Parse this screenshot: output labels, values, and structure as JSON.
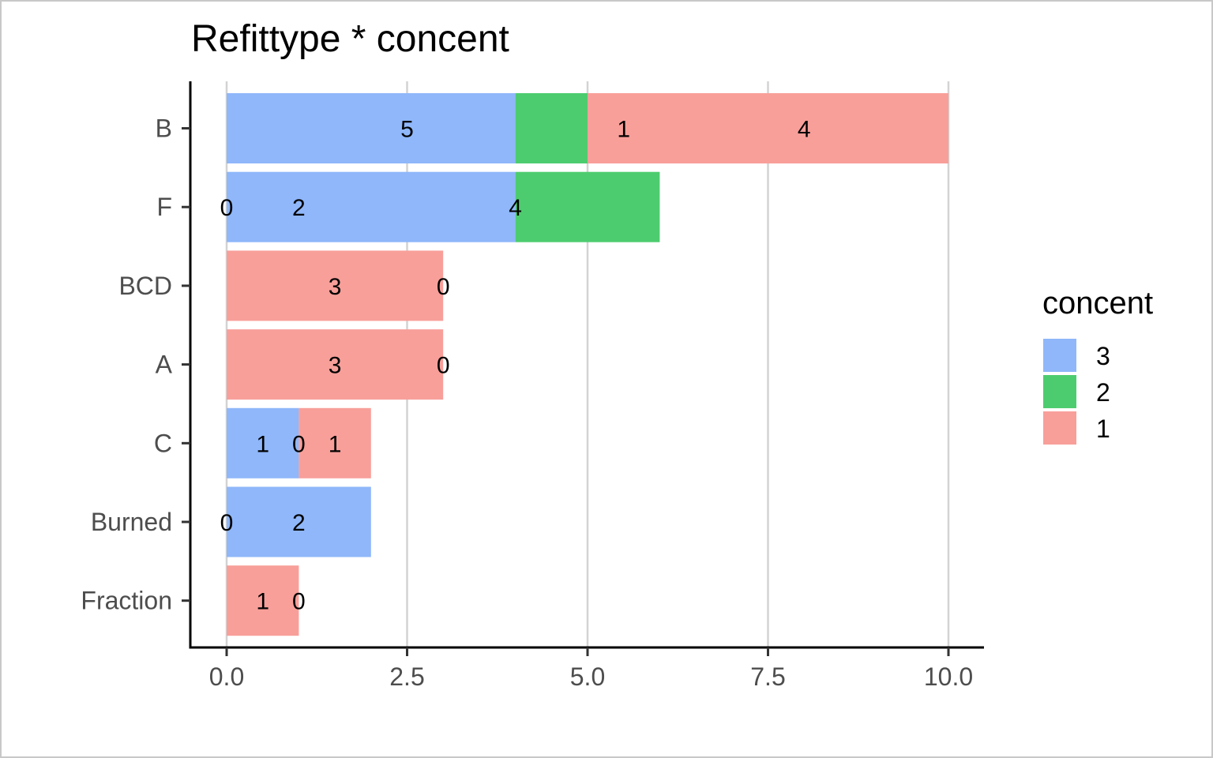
{
  "chart_data": {
    "type": "bar",
    "orientation": "horizontal",
    "stacked": true,
    "title": "Refittype  *  concent",
    "xlabel": "",
    "ylabel": "",
    "xlim": [
      0,
      10
    ],
    "x_ticks": [
      "0.0",
      "2.5",
      "5.0",
      "7.5",
      "10.0"
    ],
    "x_tick_values": [
      0,
      2.5,
      5,
      7.5,
      10
    ],
    "grid": "vertical major",
    "categories": [
      "B",
      "F",
      "BCD",
      "A",
      "C",
      "Burned",
      "Fraction"
    ],
    "series": [
      {
        "name": "3",
        "color": "#8fb7fa",
        "values": [
          4,
          4,
          0,
          0,
          1,
          2,
          0
        ]
      },
      {
        "name": "2",
        "color": "#4dcc6f",
        "values": [
          1,
          2,
          0,
          0,
          0,
          0,
          0
        ]
      },
      {
        "name": "1",
        "color": "#f89f9a",
        "values": [
          5,
          0,
          3,
          3,
          1,
          0,
          1
        ]
      }
    ],
    "data_labels": [
      {
        "category": "B",
        "x": 2.5,
        "text": "5"
      },
      {
        "category": "B",
        "x": 5.5,
        "text": "1"
      },
      {
        "category": "B",
        "x": 8,
        "text": "4"
      },
      {
        "category": "F",
        "x": 0,
        "text": "0"
      },
      {
        "category": "F",
        "x": 1,
        "text": "2"
      },
      {
        "category": "F",
        "x": 4,
        "text": "4"
      },
      {
        "category": "BCD",
        "x": 1.5,
        "text": "3"
      },
      {
        "category": "BCD",
        "x": 3,
        "text": "0"
      },
      {
        "category": "A",
        "x": 1.5,
        "text": "3"
      },
      {
        "category": "A",
        "x": 3,
        "text": "0"
      },
      {
        "category": "C",
        "x": 0.5,
        "text": "1"
      },
      {
        "category": "C",
        "x": 1,
        "text": "0"
      },
      {
        "category": "C",
        "x": 1.5,
        "text": "1"
      },
      {
        "category": "Burned",
        "x": 0,
        "text": "0"
      },
      {
        "category": "Burned",
        "x": 1,
        "text": "2"
      },
      {
        "category": "Fraction",
        "x": 0.5,
        "text": "1"
      },
      {
        "category": "Fraction",
        "x": 1,
        "text": "0"
      }
    ],
    "legend": {
      "title": "concent",
      "position": "right",
      "entries": [
        "3",
        "2",
        "1"
      ]
    }
  }
}
